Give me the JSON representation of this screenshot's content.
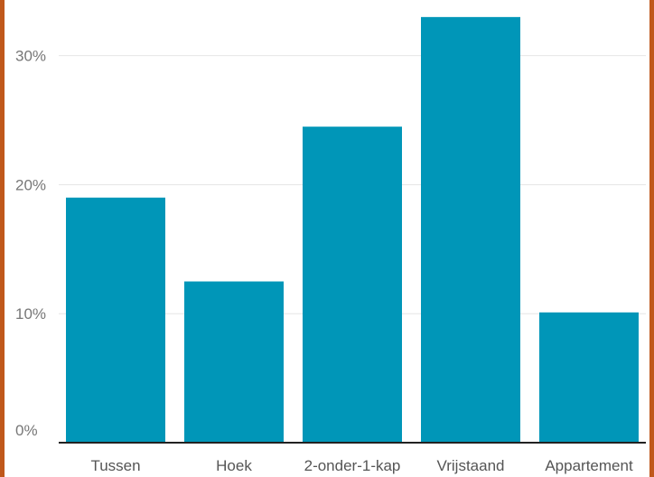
{
  "colors": {
    "bar": "#0096b8",
    "frame": "#c0581b",
    "grid": "#e6e6e6",
    "axis": "#222222"
  },
  "chart_data": {
    "type": "bar",
    "categories": [
      "Tussen",
      "Hoek",
      "2-onder-1-kap",
      "Vrijstaand",
      "Appartement"
    ],
    "values": [
      19.0,
      12.5,
      24.5,
      33.0,
      10.1
    ],
    "y_ticks": [
      0,
      10,
      20,
      30
    ],
    "y_tick_labels": [
      "0%",
      "10%",
      "20%",
      "30%"
    ],
    "ylim": [
      0,
      33.2
    ],
    "grid": true,
    "legend": "none"
  }
}
